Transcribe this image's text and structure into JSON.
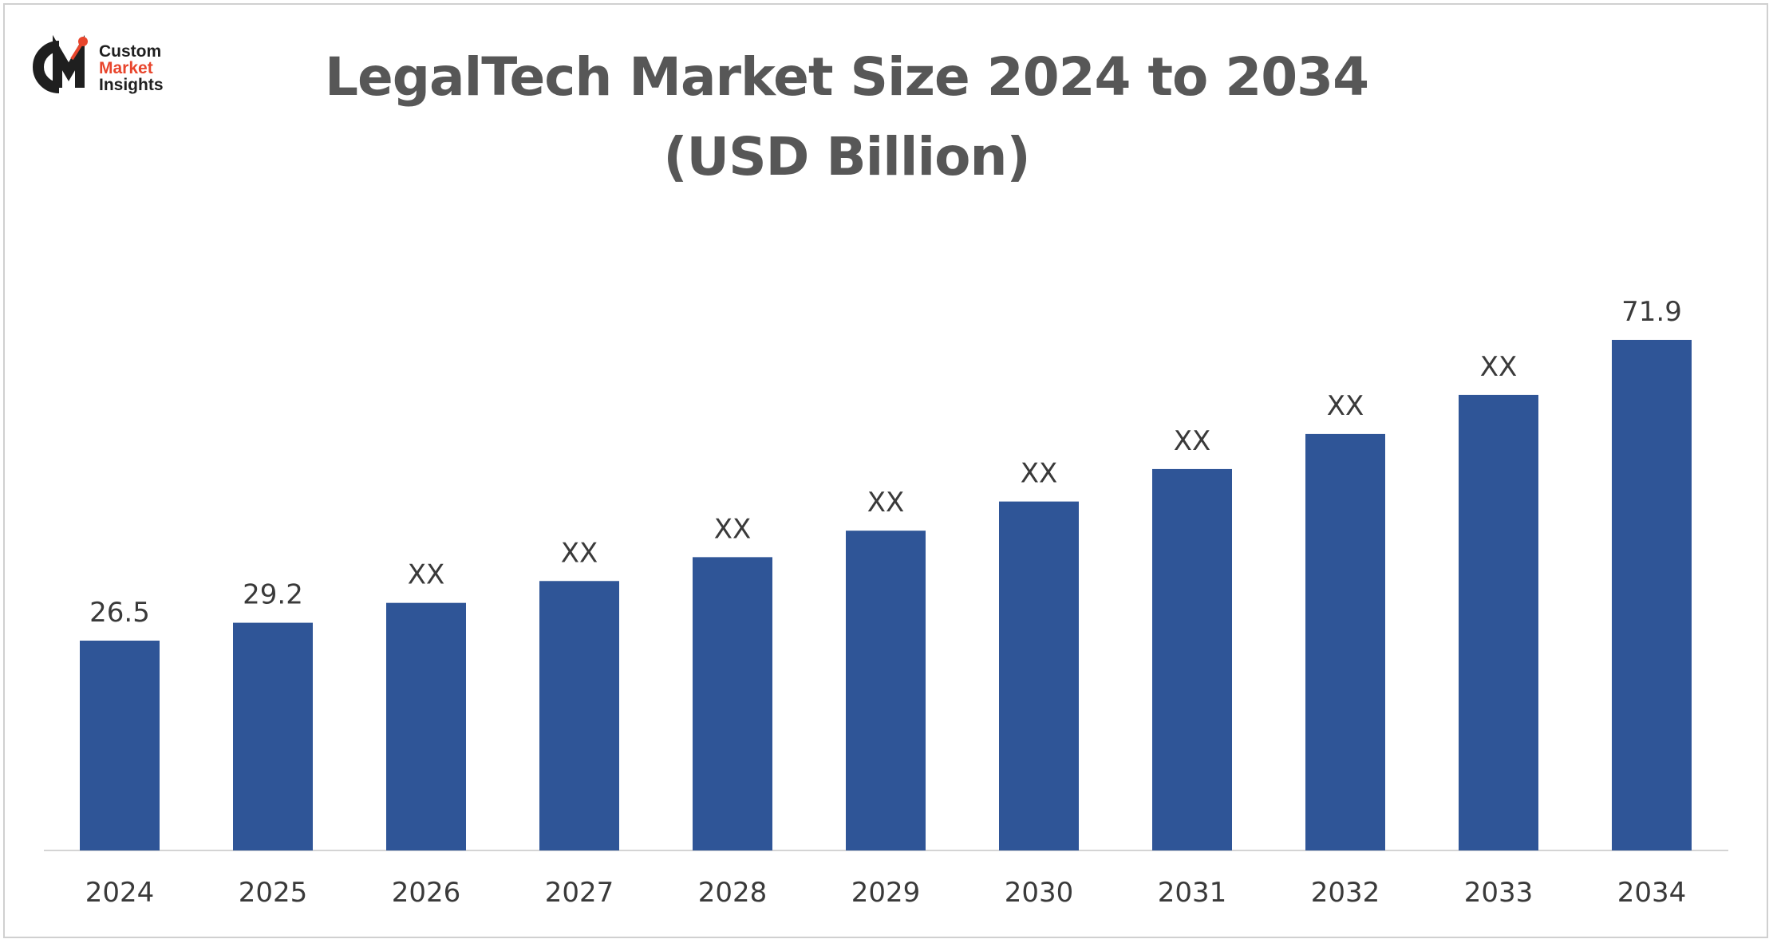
{
  "logo": {
    "line1": "Custom",
    "line2": "Market",
    "line3": "Insights",
    "colors": {
      "dark": "#1f1f1f",
      "accent": "#e8452c"
    }
  },
  "title": {
    "line1": "LegalTech Market Size 2024 to 2034",
    "line2": "(USD Billion)"
  },
  "chart_data": {
    "type": "bar",
    "title": "LegalTech Market Size 2024 to 2034 (USD Billion)",
    "xlabel": "",
    "ylabel": "",
    "categories": [
      "2024",
      "2025",
      "2026",
      "2027",
      "2028",
      "2029",
      "2030",
      "2031",
      "2032",
      "2033",
      "2034"
    ],
    "values": [
      26.5,
      29.2,
      32.2,
      35.5,
      39.1,
      43.1,
      47.5,
      52.4,
      57.7,
      63.6,
      71.9
    ],
    "data_labels": [
      "26.5",
      "29.2",
      "XX",
      "XX",
      "XX",
      "XX",
      "XX",
      "XX",
      "XX",
      "XX",
      "71.9"
    ],
    "ylim": [
      0,
      80
    ],
    "grid": false,
    "legend": "none",
    "bar_color": "#2f5597"
  }
}
